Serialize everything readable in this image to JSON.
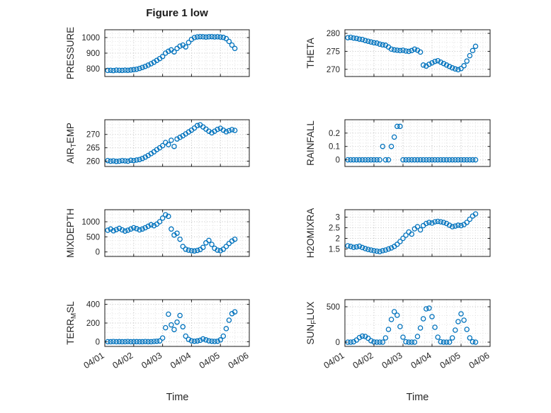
{
  "figure": {
    "title": "Figure 1 low",
    "xlabel": "Time",
    "xtick_labels": [
      "04/01",
      "04/02",
      "04/03",
      "04/04",
      "04/05",
      "04/06"
    ],
    "marker_color": "#0072BD",
    "axis_color": "#1a1a1a",
    "grid_color": "#bdbdbd",
    "minor_grid_color": "#e2e2e2",
    "text_color": "#262626"
  },
  "shared_x_days": [
    0.1,
    0.2,
    0.3,
    0.4,
    0.5,
    0.6,
    0.7,
    0.8,
    0.9,
    1.0,
    1.1,
    1.2,
    1.3,
    1.4,
    1.5,
    1.6,
    1.7,
    1.8,
    1.9,
    2.0,
    2.1,
    2.2,
    2.3,
    2.4,
    2.5,
    2.6,
    2.7,
    2.8,
    2.9,
    3.0,
    3.1,
    3.2,
    3.3,
    3.4,
    3.5,
    3.6,
    3.7,
    3.8,
    3.9,
    4.0,
    4.1,
    4.2,
    4.3,
    4.4,
    4.5
  ],
  "chart_data": [
    {
      "type": "scatter",
      "name": "PRESSURE",
      "ylabel": [
        {
          "text": "PRESSURE",
          "sub": false
        }
      ],
      "yticks": [
        800,
        900,
        1000
      ],
      "ytick_labels": [
        "800",
        "900",
        "1000"
      ],
      "ylim": [
        750,
        1050
      ],
      "xlim": [
        0,
        5
      ],
      "grid": true,
      "y": [
        789,
        790,
        788,
        791,
        790,
        789,
        791,
        790,
        792,
        794,
        797,
        802,
        808,
        815,
        823,
        832,
        842,
        853,
        865,
        878,
        900,
        912,
        921,
        908,
        930,
        945,
        952,
        940,
        968,
        988,
        1000,
        1004,
        1006,
        1005,
        1003,
        1005,
        1006,
        1004,
        1005,
        1003,
        1001,
        993,
        975,
        952,
        930
      ]
    },
    {
      "type": "scatter",
      "name": "THETA",
      "ylabel": [
        {
          "text": "THETA",
          "sub": false
        }
      ],
      "yticks": [
        270,
        275,
        280
      ],
      "ytick_labels": [
        "270",
        "275",
        "280"
      ],
      "ylim": [
        268,
        281
      ],
      "xlim": [
        0,
        5
      ],
      "grid": true,
      "y": [
        278.8,
        278.9,
        278.7,
        278.6,
        278.4,
        278.3,
        278.0,
        277.8,
        277.6,
        277.4,
        277.3,
        277.0,
        276.8,
        276.7,
        276.2,
        275.6,
        275.4,
        275.3,
        275.2,
        275.3,
        275.1,
        275.0,
        275.2,
        275.6,
        275.3,
        274.8,
        271.2,
        270.9,
        271.4,
        271.8,
        272.2,
        272.4,
        272.0,
        271.6,
        271.2,
        270.8,
        270.4,
        270.1,
        269.9,
        270.2,
        271.0,
        272.3,
        273.8,
        275.2,
        276.4
      ]
    },
    {
      "type": "scatter",
      "name": "AIR_TEMP",
      "ylabel": [
        {
          "text": "AIR",
          "sub": false
        },
        {
          "text": "T",
          "sub": true
        },
        {
          "text": "EMP",
          "sub": false
        }
      ],
      "yticks": [
        260,
        265,
        270
      ],
      "ytick_labels": [
        "260",
        "265",
        "270"
      ],
      "ylim": [
        258,
        275.5
      ],
      "xlim": [
        0,
        5
      ],
      "grid": true,
      "y": [
        260.2,
        260.0,
        260.1,
        259.9,
        260.0,
        260.2,
        260.1,
        260.0,
        260.3,
        260.2,
        260.4,
        260.6,
        261.0,
        261.5,
        262.1,
        262.8,
        263.5,
        264.3,
        265.0,
        265.8,
        267.0,
        266.2,
        267.8,
        265.5,
        268.3,
        268.9,
        269.5,
        270.2,
        270.9,
        271.6,
        272.4,
        273.3,
        273.6,
        272.8,
        272.0,
        271.2,
        270.6,
        271.2,
        271.9,
        272.3,
        271.6,
        271.0,
        271.4,
        271.8,
        271.5
      ]
    },
    {
      "type": "scatter",
      "name": "RAINFALL",
      "ylabel": [
        {
          "text": "RAINFALL",
          "sub": false
        }
      ],
      "yticks": [
        0,
        0.1,
        0.2
      ],
      "ytick_labels": [
        "0",
        "0.1",
        "0.2"
      ],
      "ylim": [
        -0.05,
        0.3
      ],
      "xlim": [
        0,
        5
      ],
      "grid": true,
      "y": [
        0,
        0,
        0,
        0,
        0,
        0,
        0,
        0,
        0,
        0,
        0,
        0,
        0.1,
        0,
        0,
        0.1,
        0.17,
        0.25,
        0.25,
        0,
        0,
        0,
        0,
        0,
        0,
        0,
        0,
        0,
        0,
        0,
        0,
        0,
        0,
        0,
        0,
        0,
        0,
        0,
        0,
        0,
        0,
        0,
        0,
        0,
        0
      ]
    },
    {
      "type": "scatter",
      "name": "MIXDEPTH",
      "ylabel": [
        {
          "text": "MIXDEPTH",
          "sub": false
        }
      ],
      "yticks": [
        0,
        500,
        1000
      ],
      "ytick_labels": [
        "0",
        "500",
        "1000"
      ],
      "ylim": [
        -150,
        1400
      ],
      "xlim": [
        0,
        5
      ],
      "grid": true,
      "y": [
        720,
        760,
        700,
        740,
        780,
        730,
        690,
        720,
        760,
        800,
        770,
        730,
        760,
        800,
        850,
        900,
        870,
        920,
        1000,
        1120,
        1230,
        1180,
        760,
        560,
        620,
        420,
        180,
        90,
        60,
        40,
        30,
        50,
        80,
        150,
        300,
        380,
        250,
        120,
        60,
        40,
        90,
        180,
        280,
        360,
        420
      ]
    },
    {
      "type": "scatter",
      "name": "H2OMIXRA",
      "ylabel": [
        {
          "text": "H2OMIXRA",
          "sub": false
        }
      ],
      "yticks": [
        1.5,
        2,
        2.5,
        3
      ],
      "ytick_labels": [
        "1.5",
        "2",
        "2.5",
        "3"
      ],
      "ylim": [
        1.15,
        3.35
      ],
      "xlim": [
        0,
        5
      ],
      "grid": true,
      "y": [
        1.65,
        1.62,
        1.58,
        1.6,
        1.63,
        1.57,
        1.52,
        1.48,
        1.45,
        1.42,
        1.4,
        1.38,
        1.42,
        1.45,
        1.5,
        1.55,
        1.62,
        1.72,
        1.85,
        2.0,
        2.15,
        2.3,
        2.2,
        2.45,
        2.55,
        2.4,
        2.6,
        2.7,
        2.75,
        2.72,
        2.78,
        2.8,
        2.78,
        2.75,
        2.7,
        2.62,
        2.55,
        2.58,
        2.62,
        2.6,
        2.65,
        2.75,
        2.9,
        3.05,
        3.15
      ]
    },
    {
      "type": "scatter",
      "name": "TERR_MSL",
      "ylabel": [
        {
          "text": "TERR",
          "sub": false
        },
        {
          "text": "M",
          "sub": true
        },
        {
          "text": "SL",
          "sub": false
        }
      ],
      "yticks": [
        0,
        200,
        400
      ],
      "ytick_labels": [
        "0",
        "200",
        "400"
      ],
      "ylim": [
        -50,
        450
      ],
      "xlim": [
        0,
        5
      ],
      "grid": true,
      "y": [
        0,
        0,
        2,
        0,
        1,
        0,
        0,
        2,
        0,
        0,
        1,
        0,
        0,
        2,
        0,
        0,
        3,
        5,
        8,
        40,
        150,
        295,
        180,
        130,
        210,
        280,
        160,
        60,
        25,
        10,
        5,
        8,
        15,
        30,
        20,
        10,
        5,
        3,
        5,
        20,
        60,
        140,
        230,
        300,
        320
      ]
    },
    {
      "type": "scatter",
      "name": "SUN_FLUX",
      "ylabel": [
        {
          "text": "SUN",
          "sub": false
        },
        {
          "text": "F",
          "sub": true
        },
        {
          "text": "LUX",
          "sub": false
        }
      ],
      "yticks": [
        0,
        500
      ],
      "ytick_labels": [
        "0",
        "500"
      ],
      "ylim": [
        -60,
        600
      ],
      "xlim": [
        0,
        5
      ],
      "grid": true,
      "y": [
        0,
        0,
        5,
        30,
        65,
        85,
        80,
        55,
        20,
        3,
        0,
        0,
        0,
        60,
        180,
        320,
        430,
        380,
        220,
        70,
        5,
        0,
        0,
        0,
        80,
        200,
        330,
        470,
        480,
        360,
        210,
        70,
        5,
        0,
        0,
        0,
        60,
        170,
        290,
        400,
        310,
        180,
        60,
        5,
        0
      ]
    }
  ]
}
